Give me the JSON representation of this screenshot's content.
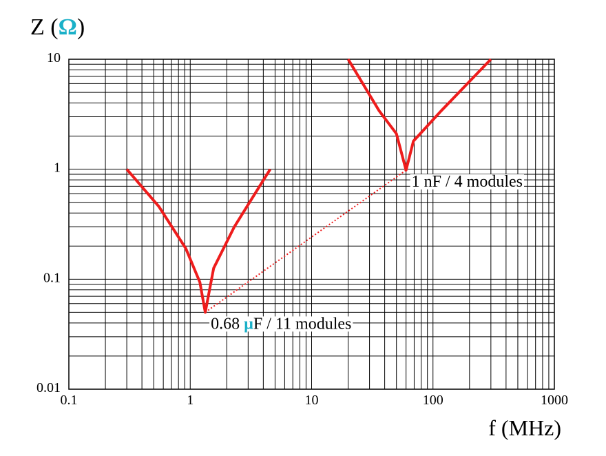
{
  "chart_data": {
    "type": "line",
    "ylabel": "Z (Ω)",
    "xlabel": "f  (MHz)",
    "xlog": true,
    "ylog": true,
    "grid": true,
    "xlim": [
      0.1,
      1000
    ],
    "ylim": [
      0.01,
      10
    ],
    "xticks": [
      0.1,
      1,
      10,
      100,
      1000
    ],
    "yticks": [
      0.01,
      0.1,
      1,
      10
    ],
    "series": [
      {
        "name": "0.68 µF / 11 modules",
        "color": "#ee1c1c",
        "x": [
          0.3,
          0.55,
          0.92,
          1.2,
          1.33,
          1.56,
          2.31,
          4.56
        ],
        "values": [
          1,
          0.46,
          0.19,
          0.094,
          0.05,
          0.126,
          0.3,
          1
        ]
      },
      {
        "name": "1 nF / 4 modules",
        "color": "#ee1c1c",
        "x": [
          20,
          36,
          50,
          60,
          69,
          117,
          300
        ],
        "values": [
          10,
          3.4,
          2.1,
          0.98,
          1.8,
          3.4,
          10
        ]
      }
    ]
  }
}
